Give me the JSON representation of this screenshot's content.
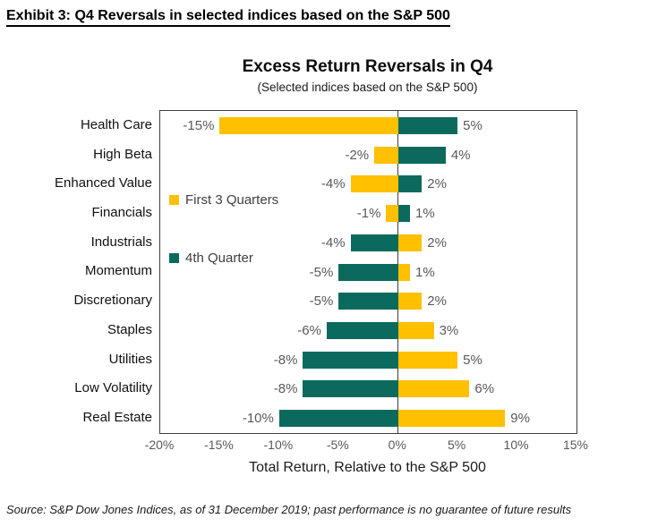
{
  "exhibit_title": "Exhibit 3: Q4 Reversals in selected indices based on the S&P 500",
  "chart": {
    "title": "Excess Return Reversals in Q4",
    "subtitle": "(Selected indices based on the S&P 500)",
    "xlabel": "Total Return, Relative to the S&P 500"
  },
  "chart_data": {
    "type": "bar",
    "orientation": "horizontal",
    "title": "Excess Return Reversals in Q4",
    "subtitle": "(Selected indices based on the S&P 500)",
    "xlabel": "Total Return, Relative to the S&P 500",
    "categories": [
      "Health Care",
      "High Beta",
      "Enhanced Value",
      "Financials",
      "Industrials",
      "Momentum",
      "Discretionary",
      "Staples",
      "Utilities",
      "Low Volatility",
      "Real Estate"
    ],
    "series": [
      {
        "name": "First 3 Quarters",
        "color": "#FFC000",
        "values": [
          -15,
          -2,
          -4,
          -1,
          2,
          1,
          2,
          3,
          5,
          6,
          9
        ],
        "labels": [
          "-15%",
          "-2%",
          "-4%",
          "-1%",
          "2%",
          "1%",
          "2%",
          "3%",
          "5%",
          "6%",
          "9%"
        ]
      },
      {
        "name": "4th Quarter",
        "color": "#0B6A5D",
        "values": [
          5,
          4,
          2,
          1,
          -4,
          -5,
          -5,
          -6,
          -8,
          -8,
          -10
        ],
        "labels": [
          "5%",
          "4%",
          "2%",
          "1%",
          "-4%",
          "-5%",
          "-5%",
          "-6%",
          "-8%",
          "-8%",
          "-10%"
        ]
      }
    ],
    "xlim": [
      -20,
      15
    ],
    "x_ticks": [
      "-20%",
      "-15%",
      "-10%",
      "-5%",
      "0%",
      "5%",
      "10%",
      "15%"
    ],
    "x_tick_values": [
      -20,
      -15,
      -10,
      -5,
      0,
      5,
      10,
      15
    ],
    "grid": false,
    "zero_line": true,
    "legend_position": "inside-left",
    "data_label_color": "#595959"
  },
  "source": "Source: S&P Dow Jones Indices, as of 31 December 2019; past performance is no guarantee of future results"
}
